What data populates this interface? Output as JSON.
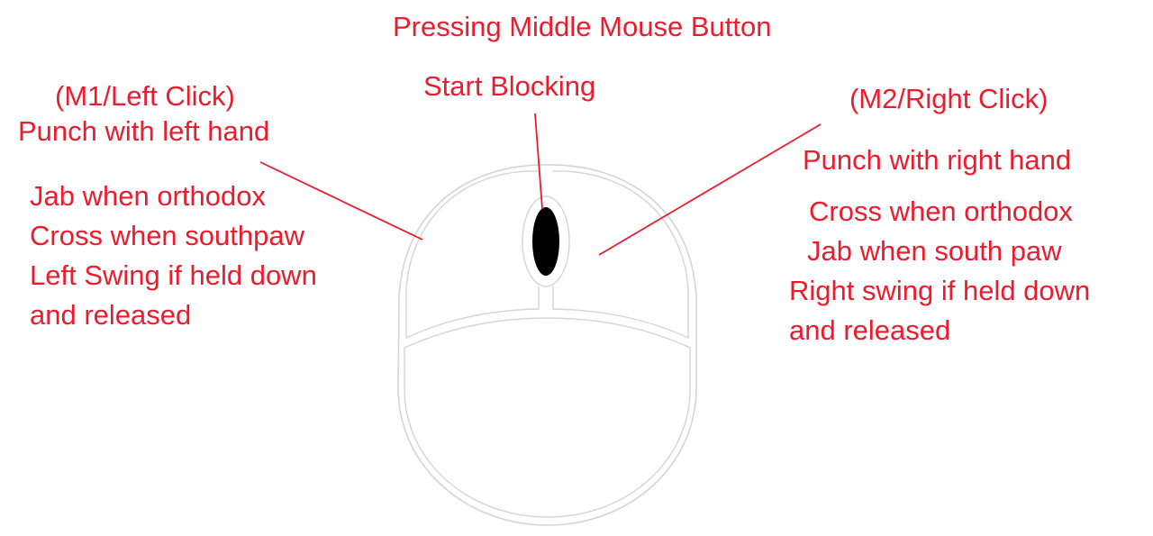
{
  "colors": {
    "annotation": "#ea1c2d",
    "mouse_outline": "#d4d4d4",
    "scroll_wheel": "#000000"
  },
  "middle_button": {
    "title": "Pressing Middle Mouse Button",
    "action": "Start Blocking"
  },
  "left_button": {
    "header": "(M1/Left Click)",
    "action": "Punch with left hand",
    "details": [
      "Jab when orthodox",
      "Cross when southpaw",
      "Left Swing if held down",
      "and released"
    ]
  },
  "right_button": {
    "header": "(M2/Right Click)",
    "action": "Punch with right hand",
    "details": [
      "Cross when orthodox",
      "Jab when south paw",
      "Right swing if held down",
      "and released"
    ]
  }
}
